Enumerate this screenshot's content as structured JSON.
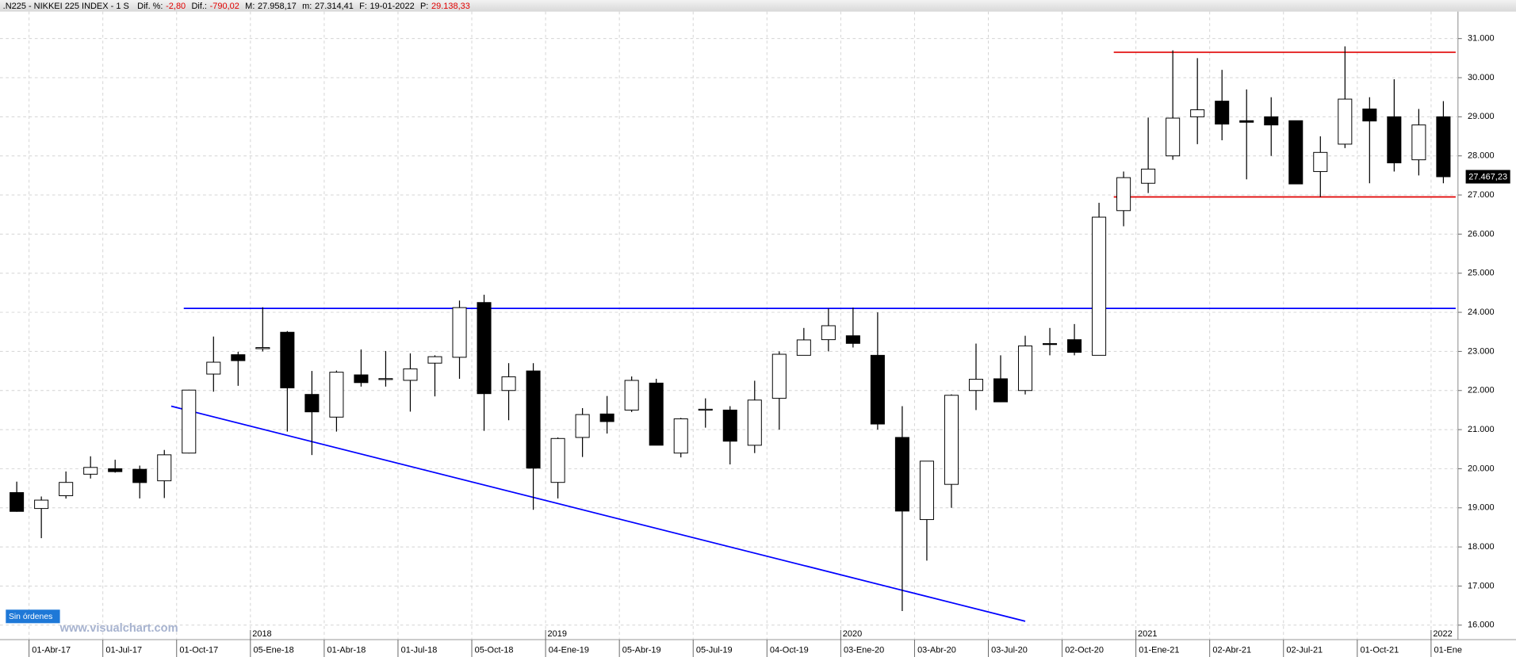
{
  "chart_data": {
    "type": "candlestick",
    "header": {
      "symbol": ".N225 - NIKKEI 225 INDEX -  1 S",
      "fields": [
        {
          "label": "Dif. %:",
          "value": "-2,80",
          "color": "#e00000"
        },
        {
          "label": "Dif.:",
          "value": "-790,02",
          "color": "#e00000"
        },
        {
          "label": "M:",
          "value": "27.958,17",
          "color": "#000000"
        },
        {
          "label": "m:",
          "value": "27.314,41",
          "color": "#000000"
        },
        {
          "label": "F:",
          "value": "19-01-2022",
          "color": "#000000"
        },
        {
          "label": "P:",
          "value": "29.138,33",
          "color": "#e00000"
        }
      ]
    },
    "series": {
      "open": [
        19390,
        18983,
        19310,
        19860,
        20000,
        19985,
        19691,
        20400,
        22420,
        22916,
        23070,
        23490,
        21900,
        21320,
        22400,
        22300,
        22260,
        22700,
        22850,
        24250,
        22000,
        22500,
        19650,
        20800,
        21400,
        21500,
        22190,
        20400,
        21500,
        21500,
        20600,
        21800,
        22900,
        23300,
        23400,
        22900,
        20800,
        18700,
        19600,
        22000,
        22300,
        22000,
        23200,
        23300,
        22900,
        26600,
        27300,
        28000,
        29000,
        29400,
        28900,
        29000,
        28900,
        27600,
        28300,
        29200,
        29000,
        27900,
        29000
      ],
      "high": [
        19670,
        19290,
        19930,
        20318,
        20230,
        20080,
        20480,
        22020,
        23380,
        22990,
        24130,
        23520,
        22500,
        22510,
        23050,
        23010,
        22950,
        22900,
        24300,
        24450,
        22700,
        22700,
        20800,
        21550,
        21860,
        22360,
        22300,
        21300,
        21800,
        21600,
        22250,
        23000,
        23600,
        24100,
        24120,
        24000,
        21600,
        20200,
        21900,
        23200,
        22900,
        23400,
        23600,
        23700,
        26800,
        27600,
        28980,
        30700,
        30500,
        30200,
        29700,
        29500,
        28900,
        28500,
        30800,
        29500,
        29960,
        29200,
        29400
      ],
      "low": [
        18900,
        18224,
        19236,
        19750,
        19900,
        19240,
        19250,
        20390,
        21970,
        22120,
        23000,
        20950,
        20350,
        20950,
        22100,
        22100,
        21460,
        21850,
        22300,
        20970,
        21240,
        18950,
        19240,
        20300,
        20900,
        21450,
        20750,
        20290,
        21050,
        20110,
        20400,
        21000,
        22900,
        23000,
        23100,
        21000,
        16360,
        17650,
        19000,
        21500,
        21700,
        21900,
        22900,
        22900,
        22900,
        26200,
        27050,
        27900,
        28300,
        28400,
        27400,
        28000,
        27300,
        26950,
        28200,
        27300,
        27600,
        27500,
        27300
      ],
      "close": [
        18909,
        19197,
        19650,
        20033,
        19925,
        19646,
        20356,
        22011,
        22724,
        22764,
        23098,
        22068,
        21454,
        22468,
        22202,
        22305,
        22554,
        22865,
        24120,
        21920,
        22351,
        20015,
        20773,
        21385,
        21206,
        22259,
        20601,
        21276,
        21522,
        20704,
        21756,
        22927,
        23294,
        23657,
        23205,
        21143,
        18917,
        20194,
        21878,
        22288,
        21710,
        23140,
        23185,
        22977,
        26433,
        27444,
        27663,
        28966,
        29179,
        28813,
        28860,
        28791,
        27283,
        28089,
        29452,
        28892,
        27821,
        28791,
        27467
      ],
      "up_color": "#ffffff",
      "down_color": "#000000"
    },
    "last_price": {
      "value": 27467.23,
      "label": "27.467,23"
    },
    "lines": [
      {
        "color": "#0000ff",
        "x": [
          7.29,
          59
        ],
        "y": [
          24100,
          24100
        ]
      },
      {
        "color": "#0000ff",
        "x": [
          6.78,
          41.5
        ],
        "y": [
          21600,
          16100
        ]
      },
      {
        "color": "#e00000",
        "x": [
          45.1,
          59
        ],
        "y": [
          30650,
          30650
        ]
      },
      {
        "color": "#e00000",
        "x": [
          45.1,
          59
        ],
        "y": [
          26950,
          26950
        ]
      }
    ],
    "xlim": [
      0,
      59
    ],
    "xticks": [
      {
        "value": 1,
        "label": "01-Abr-17"
      },
      {
        "value": 4,
        "label": "01-Jul-17"
      },
      {
        "value": 7,
        "label": "01-Oct-17"
      },
      {
        "value": 10,
        "label": "05-Ene-18"
      },
      {
        "value": 13,
        "label": "01-Abr-18"
      },
      {
        "value": 16,
        "label": "01-Jul-18"
      },
      {
        "value": 19,
        "label": "05-Oct-18"
      },
      {
        "value": 22,
        "label": "04-Ene-19"
      },
      {
        "value": 25,
        "label": "05-Abr-19"
      },
      {
        "value": 28,
        "label": "05-Jul-19"
      },
      {
        "value": 31,
        "label": "04-Oct-19"
      },
      {
        "value": 34,
        "label": "03-Ene-20"
      },
      {
        "value": 37,
        "label": "03-Abr-20"
      },
      {
        "value": 40,
        "label": "03-Jul-20"
      },
      {
        "value": 43,
        "label": "02-Oct-20"
      },
      {
        "value": 46,
        "label": "01-Ene-21"
      },
      {
        "value": 49,
        "label": "02-Abr-21"
      },
      {
        "value": 52,
        "label": "02-Jul-21"
      },
      {
        "value": 55,
        "label": "01-Oct-21"
      },
      {
        "value": 58,
        "label": "01-Ene"
      }
    ],
    "year_ticks": [
      {
        "value": 10,
        "label": "2018"
      },
      {
        "value": 22,
        "label": "2019"
      },
      {
        "value": 34,
        "label": "2020"
      },
      {
        "value": 46,
        "label": "2021"
      },
      {
        "value": 58,
        "label": "2022"
      }
    ],
    "ylim": [
      15630,
      31690
    ],
    "yticks": [
      {
        "value": 16000,
        "label": "16.000"
      },
      {
        "value": 17000,
        "label": "17.000"
      },
      {
        "value": 18000,
        "label": "18.000"
      },
      {
        "value": 19000,
        "label": "19.000"
      },
      {
        "value": 20000,
        "label": "20.000"
      },
      {
        "value": 21000,
        "label": "21.000"
      },
      {
        "value": 22000,
        "label": "22.000"
      },
      {
        "value": 23000,
        "label": "23.000"
      },
      {
        "value": 24000,
        "label": "24.000"
      },
      {
        "value": 25000,
        "label": "25.000"
      },
      {
        "value": 26000,
        "label": "26.000"
      },
      {
        "value": 27000,
        "label": "27.000"
      },
      {
        "value": 28000,
        "label": "28.000"
      },
      {
        "value": 29000,
        "label": "29.000"
      },
      {
        "value": 30000,
        "label": "30.000"
      },
      {
        "value": 31000,
        "label": "31.000"
      }
    ],
    "grid": true,
    "orders_button": "Sin órdenes",
    "watermark": "www.visualchart.com"
  }
}
